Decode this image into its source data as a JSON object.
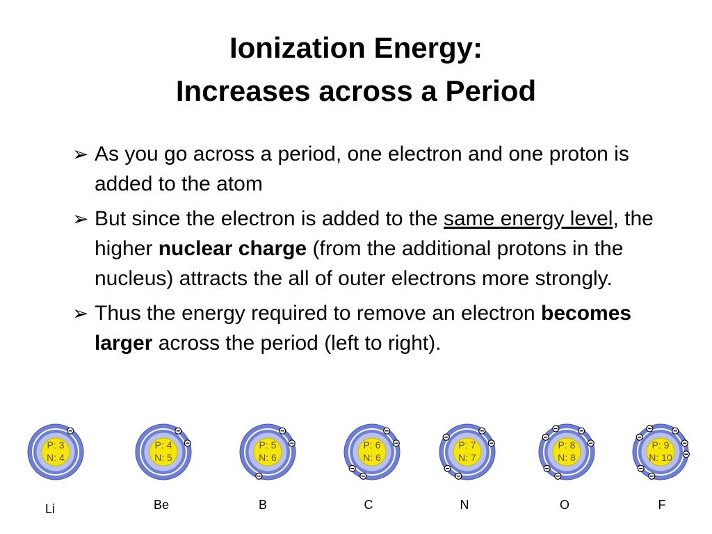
{
  "title": {
    "line1": "Ionization Energy:",
    "line2": "Increases across a Period"
  },
  "bullet_icon": "arrowhead-bullet-icon",
  "bullets": [
    {
      "p1": "As you go across a period, one electron and one proton is added to the atom"
    },
    {
      "p1": "But since the electron is added to the ",
      "u1": "same energy level",
      "p2": ", the higher ",
      "b1": "nuclear charge",
      "p3": " (from the additional protons in the nucleus) attracts the all of outer electrons more strongly."
    },
    {
      "p1": "Thus the energy required to remove an electron ",
      "b1": "becomes larger",
      "p2": " across the period (left to right)."
    }
  ],
  "colors": {
    "outer_shell": "#6f7fd6",
    "inner_shell": "#b8c0ee",
    "nucleus": "#f5e60a",
    "electron": "#000000"
  },
  "atoms": [
    {
      "symbol": "Li",
      "protons": "P: 3",
      "neutrons": "N: 4",
      "outer_electrons": 1
    },
    {
      "symbol": "Be",
      "protons": "P: 4",
      "neutrons": "N: 5",
      "outer_electrons": 2
    },
    {
      "symbol": "B",
      "protons": "P: 5",
      "neutrons": "N: 6",
      "outer_electrons": 3
    },
    {
      "symbol": "C",
      "protons": "P: 6",
      "neutrons": "N: 6",
      "outer_electrons": 4
    },
    {
      "symbol": "N",
      "protons": "P: 7",
      "neutrons": "N: 7",
      "outer_electrons": 5
    },
    {
      "symbol": "O",
      "protons": "P: 8",
      "neutrons": "N: 8",
      "outer_electrons": 6
    },
    {
      "symbol": "F",
      "protons": "P: 9",
      "neutrons": "N: 10",
      "outer_electrons": 7
    }
  ]
}
